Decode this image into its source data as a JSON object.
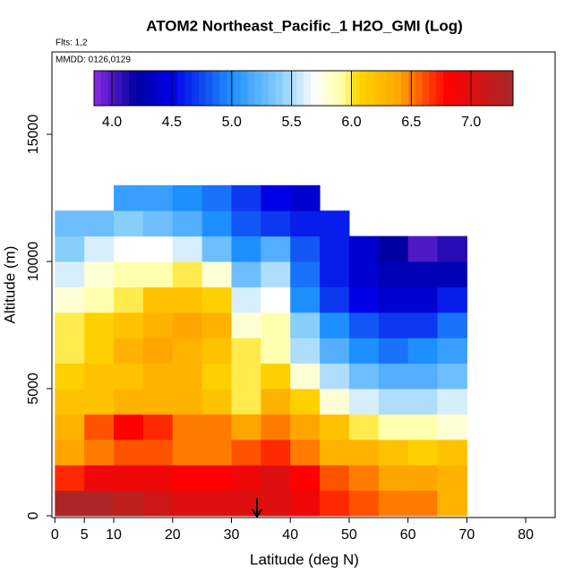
{
  "chart_data": {
    "type": "heatmap",
    "title": "ATOM2 Northeast_Pacific_1 H2O_GMI (Log)",
    "subtitle": "Flts: 1,2",
    "annotation": "MMDD: 0126,0129",
    "x_label": "Latitude (deg N)",
    "y_label": "Altitude (m)",
    "x_edges": [
      0,
      5,
      10,
      15,
      20,
      25,
      30,
      35,
      40,
      45,
      50,
      55,
      60,
      65,
      70
    ],
    "y_edges": [
      0,
      1000,
      2000,
      3000,
      4000,
      5000,
      6000,
      7000,
      8000,
      9000,
      10000,
      11000,
      12000,
      13000
    ],
    "z": [
      [
        7.3,
        7.3,
        7.2,
        7.1,
        7.0,
        7.0,
        7.0,
        7.0,
        6.9,
        6.7,
        6.6,
        6.5,
        6.5,
        6.3
      ],
      [
        6.7,
        6.9,
        6.9,
        6.9,
        6.8,
        6.8,
        6.9,
        7.0,
        6.8,
        6.6,
        6.5,
        6.4,
        6.4,
        6.3
      ],
      [
        6.4,
        6.5,
        6.6,
        6.6,
        6.5,
        6.5,
        6.6,
        6.7,
        6.5,
        6.3,
        6.3,
        6.2,
        6.1,
        6.2
      ],
      [
        6.3,
        6.6,
        6.8,
        6.7,
        6.5,
        6.5,
        6.4,
        6.5,
        6.4,
        6.2,
        6.0,
        5.9,
        5.9,
        5.8
      ],
      [
        6.2,
        6.2,
        6.3,
        6.3,
        6.3,
        6.2,
        6.0,
        6.3,
        6.1,
        5.8,
        5.6,
        5.5,
        5.5,
        5.6
      ],
      [
        6.1,
        6.2,
        6.2,
        6.3,
        6.3,
        6.1,
        6.0,
        6.1,
        5.8,
        5.5,
        5.3,
        5.2,
        5.2,
        5.3
      ],
      [
        6.0,
        6.1,
        6.3,
        6.4,
        6.3,
        6.2,
        6.0,
        5.9,
        5.5,
        5.2,
        5.0,
        4.9,
        5.0,
        5.1
      ],
      [
        6.0,
        6.1,
        6.2,
        6.3,
        6.4,
        6.3,
        5.8,
        5.9,
        5.4,
        5.0,
        4.8,
        4.7,
        4.7,
        4.9
      ],
      [
        5.8,
        5.9,
        6.0,
        6.2,
        6.2,
        6.1,
        5.6,
        5.7,
        5.0,
        4.7,
        4.5,
        4.4,
        4.4,
        4.6
      ],
      [
        5.6,
        5.8,
        5.9,
        5.9,
        6.0,
        5.8,
        5.3,
        5.5,
        4.9,
        4.6,
        4.4,
        4.3,
        4.3,
        4.3
      ],
      [
        5.4,
        5.6,
        5.7,
        5.7,
        5.6,
        5.3,
        5.0,
        5.2,
        4.8,
        4.6,
        4.4,
        4.2,
        4.0,
        4.1
      ],
      [
        5.3,
        5.3,
        5.4,
        5.3,
        5.2,
        5.0,
        4.8,
        4.7,
        4.6,
        4.6,
        null,
        null,
        null,
        null
      ],
      [
        null,
        null,
        5.1,
        5.1,
        5.0,
        4.9,
        4.7,
        4.5,
        4.4,
        null,
        null,
        null,
        null,
        null
      ]
    ],
    "xlim": [
      -0.5,
      85
    ],
    "ylim": [
      -70,
      18240
    ],
    "xticks": [
      0,
      5,
      10,
      20,
      30,
      40,
      50,
      60,
      70,
      80
    ],
    "yticks": [
      0,
      5000,
      10000,
      15000
    ],
    "zlim": [
      3.85,
      7.35
    ],
    "zticks": [
      {
        "value": 4,
        "label": "4.0"
      },
      {
        "value": 4.5,
        "label": "4.5"
      },
      {
        "value": 5,
        "label": "5.0"
      },
      {
        "value": 5.5,
        "label": "5.5"
      },
      {
        "value": 6,
        "label": "6.0"
      },
      {
        "value": 6.5,
        "label": "6.5"
      },
      {
        "value": 7,
        "label": "7.0"
      }
    ],
    "colorscale": [
      [
        3.85,
        "#8a2be2"
      ],
      [
        4.2,
        "#0000a0"
      ],
      [
        4.5,
        "#0000e6"
      ],
      [
        5.0,
        "#1e8fff"
      ],
      [
        5.4,
        "#87cefa"
      ],
      [
        5.7,
        "#ffffff"
      ],
      [
        5.95,
        "#ffff99"
      ],
      [
        6.05,
        "#ffd700"
      ],
      [
        6.4,
        "#ffa500"
      ],
      [
        6.8,
        "#ff0000"
      ],
      [
        7.35,
        "#a52a2a"
      ]
    ]
  }
}
